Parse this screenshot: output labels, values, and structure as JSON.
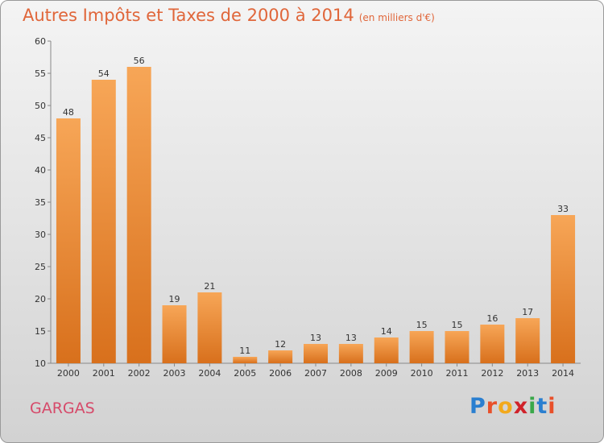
{
  "chart_data": {
    "type": "bar",
    "title": "Autres Impôts et Taxes de 2000 à 2014",
    "subtitle": "(en milliers d'€)",
    "categories": [
      "2000",
      "2001",
      "2002",
      "2003",
      "2004",
      "2005",
      "2006",
      "2007",
      "2008",
      "2009",
      "2010",
      "2011",
      "2012",
      "2013",
      "2014"
    ],
    "values": [
      48,
      54,
      56,
      19,
      21,
      11,
      12,
      13,
      13,
      14,
      15,
      15,
      16,
      17,
      33
    ],
    "ylim": [
      10,
      60
    ],
    "yticks": [
      10,
      15,
      20,
      25,
      30,
      35,
      40,
      45,
      50,
      55,
      60
    ],
    "grid": false,
    "bar_color": "#f08a30"
  },
  "location": "GARGAS",
  "logo": {
    "text": "Proxiti",
    "colors": [
      "#2a7fd0",
      "#e8502a",
      "#f2a91c",
      "#d0222a",
      "#3aa84a",
      "#2a7fd0",
      "#e8502a"
    ]
  }
}
